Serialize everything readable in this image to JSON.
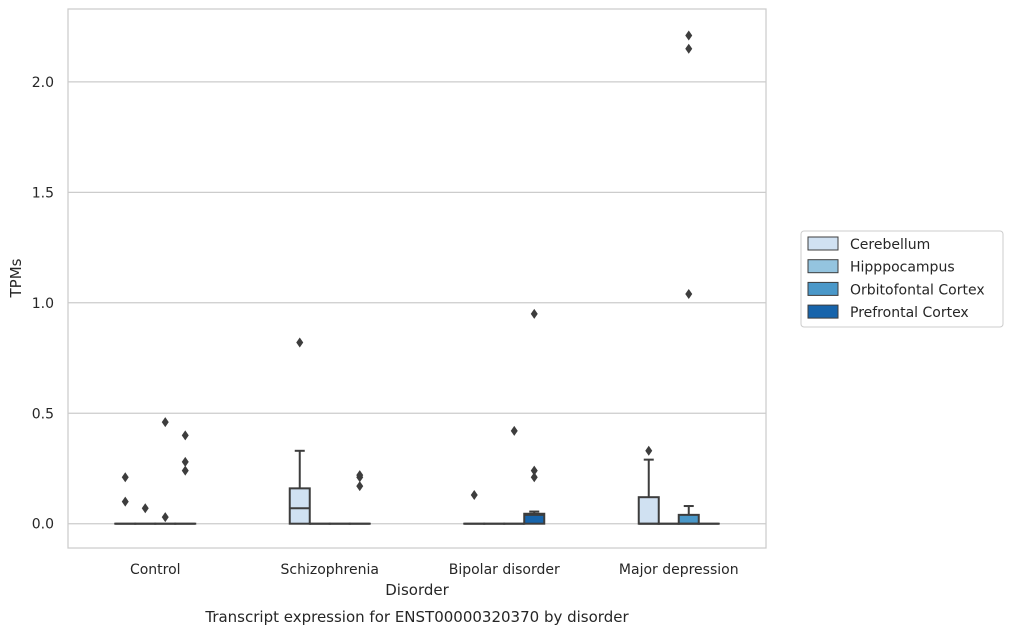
{
  "chart_data": {
    "type": "box",
    "caption": "Transcript expression for ENST00000320370 by disorder",
    "xlabel": "Disorder",
    "ylabel": "TPMs",
    "ylim": [
      -0.11,
      2.33
    ],
    "yticks": [
      "0.0",
      "0.5",
      "1.0",
      "1.5",
      "2.0"
    ],
    "ytick_values": [
      0.0,
      0.5,
      1.0,
      1.5,
      2.0
    ],
    "grid": "horizontal",
    "legend_placement": "right-outside",
    "categories": [
      "Control",
      "Schizophrenia",
      "Bipolar disorder",
      "Major depression"
    ],
    "series": [
      {
        "name": "Cerebellum",
        "color": "#d0e1f2",
        "boxes": [
          {
            "q1": 0,
            "median": 0,
            "q3": 0,
            "whislo": 0,
            "whishi": 0,
            "fliers": [
              0.21,
              0.1
            ]
          },
          {
            "q1": 0,
            "median": 0.07,
            "q3": 0.16,
            "whislo": 0,
            "whishi": 0.33,
            "fliers": [
              0.82
            ]
          },
          {
            "q1": 0,
            "median": 0,
            "q3": 0,
            "whislo": 0,
            "whishi": 0,
            "fliers": [
              0.13
            ]
          },
          {
            "q1": 0,
            "median": 0,
            "q3": 0.12,
            "whislo": 0,
            "whishi": 0.29,
            "fliers": [
              0.33
            ]
          }
        ]
      },
      {
        "name": "Hipppocampus",
        "color": "#94c4df",
        "boxes": [
          {
            "q1": 0,
            "median": 0,
            "q3": 0,
            "whislo": 0,
            "whishi": 0,
            "fliers": [
              0.07
            ]
          },
          {
            "q1": 0,
            "median": 0,
            "q3": 0,
            "whislo": 0,
            "whishi": 0,
            "fliers": []
          },
          {
            "q1": 0,
            "median": 0,
            "q3": 0,
            "whislo": 0,
            "whishi": 0,
            "fliers": []
          },
          {
            "q1": 0,
            "median": 0,
            "q3": 0,
            "whislo": 0,
            "whishi": 0,
            "fliers": []
          }
        ]
      },
      {
        "name": "Orbitofontal Cortex",
        "color": "#4a98c9",
        "boxes": [
          {
            "q1": 0,
            "median": 0,
            "q3": 0,
            "whislo": 0,
            "whishi": 0,
            "fliers": [
              0.46,
              0.03
            ]
          },
          {
            "q1": 0,
            "median": 0,
            "q3": 0,
            "whislo": 0,
            "whishi": 0,
            "fliers": []
          },
          {
            "q1": 0,
            "median": 0,
            "q3": 0,
            "whislo": 0,
            "whishi": 0,
            "fliers": [
              0.42
            ]
          },
          {
            "q1": 0,
            "median": 0,
            "q3": 0.04,
            "whislo": 0,
            "whishi": 0.08,
            "fliers": [
              2.21,
              2.15,
              1.04
            ]
          }
        ]
      },
      {
        "name": "Prefrontal Cortex",
        "color": "#1764ab",
        "boxes": [
          {
            "q1": 0,
            "median": 0,
            "q3": 0,
            "whislo": 0,
            "whishi": 0,
            "fliers": [
              0.4,
              0.28,
              0.24
            ]
          },
          {
            "q1": 0,
            "median": 0,
            "q3": 0,
            "whislo": 0,
            "whishi": 0,
            "fliers": [
              0.22,
              0.21,
              0.17
            ]
          },
          {
            "q1": 0,
            "median": 0.04,
            "q3": 0.045,
            "whislo": 0,
            "whishi": 0.055,
            "fliers": [
              0.95,
              0.24,
              0.21
            ]
          },
          {
            "q1": 0,
            "median": 0,
            "q3": 0,
            "whislo": 0,
            "whishi": 0,
            "fliers": []
          }
        ]
      }
    ]
  }
}
